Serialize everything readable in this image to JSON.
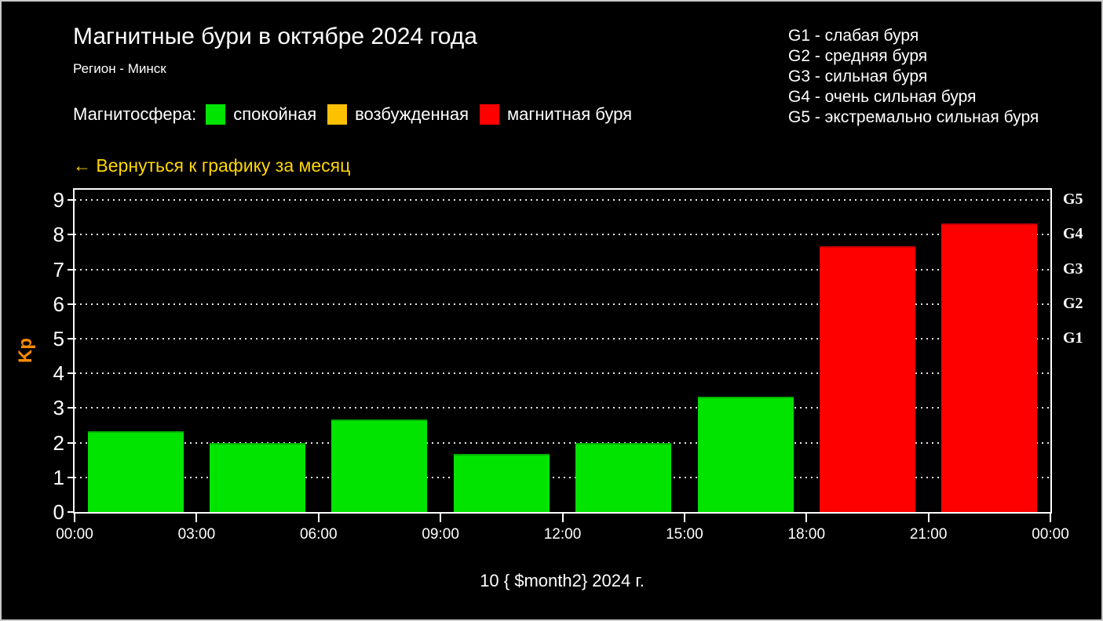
{
  "header": {
    "title": "Магнитные бури в октябре 2024 года",
    "subtitle": "Регион - Минск"
  },
  "storm_scale_legend": {
    "items": [
      "G1 - слабая буря",
      "G2 - средняя буря",
      "G3 - сильная буря",
      "G4 - очень сильная буря",
      "G5 - экстремально сильная буря"
    ]
  },
  "magnetosphere_legend": {
    "label": "Магнитосфера:",
    "items": [
      {
        "label": "спокойная",
        "color": "#00e400"
      },
      {
        "label": "возбужденная",
        "color": "#ffc000"
      },
      {
        "label": "магнитная буря",
        "color": "#ff0000"
      }
    ]
  },
  "back_link": {
    "text": "← Вернуться к графику за месяц",
    "color": "#ffd700"
  },
  "chart_data": {
    "type": "bar",
    "ylabel": "Kp",
    "ylabel_color": "#ff8c00",
    "xlabel": "10 { $month2} 2024 г.",
    "x_tick_labels": [
      "00:00",
      "03:00",
      "06:00",
      "09:00",
      "12:00",
      "15:00",
      "18:00",
      "21:00",
      "00:00"
    ],
    "categories": [
      "00:00-03:00",
      "03:00-06:00",
      "06:00-09:00",
      "09:00-12:00",
      "12:00-15:00",
      "15:00-18:00",
      "18:00-21:00",
      "21:00-00:00"
    ],
    "values": [
      2.33,
      2.0,
      2.67,
      1.67,
      2.0,
      3.33,
      7.67,
      8.33
    ],
    "bar_colors": [
      "#00e400",
      "#00e400",
      "#00e400",
      "#00e400",
      "#00e400",
      "#00e400",
      "#ff0000",
      "#ff0000"
    ],
    "yticks": [
      0,
      1,
      2,
      3,
      4,
      5,
      6,
      7,
      8,
      9
    ],
    "ylim": [
      0,
      9.3
    ],
    "right_axis_labels": [
      {
        "value": 5,
        "label": "G1"
      },
      {
        "value": 6,
        "label": "G2"
      },
      {
        "value": 7,
        "label": "G3"
      },
      {
        "value": 8,
        "label": "G4"
      },
      {
        "value": 9,
        "label": "G5"
      }
    ],
    "grid": "horizontal-dotted",
    "axis_color": "#ffffff",
    "background": "#000000"
  }
}
